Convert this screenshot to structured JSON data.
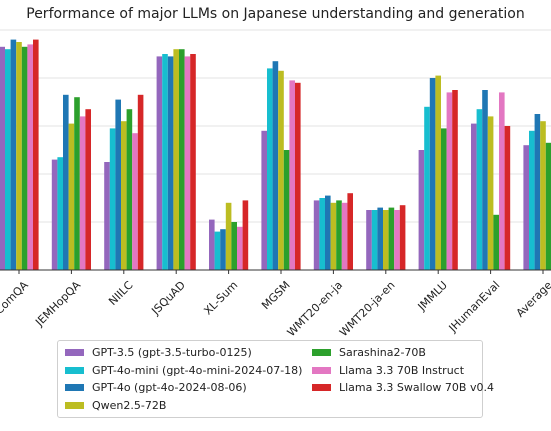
{
  "chart_data": {
    "type": "bar",
    "title": "Performance of major LLMs on Japanese understanding and generation",
    "xlabel": "",
    "ylabel": "",
    "ylim": [
      0,
      1.0
    ],
    "grid": "horizontal",
    "legend_position": "bottom",
    "categories": [
      "JComQA",
      "JEMHopQA",
      "NIILC",
      "JSQuAD",
      "XL-Sum",
      "MGSM",
      "WMT20-en-ja",
      "WMT20-ja-en",
      "JMMLU",
      "JHumanEval",
      "Average"
    ],
    "series": [
      {
        "name": "GPT-3.5 (gpt-3.5-turbo-0125)",
        "color": "#9467bd",
        "values": [
          0.93,
          0.46,
          0.45,
          0.89,
          0.21,
          0.58,
          0.29,
          0.25,
          0.5,
          0.61,
          0.52
        ]
      },
      {
        "name": "GPT-4o-mini (gpt-4o-mini-2024-07-18)",
        "color": "#17becf",
        "values": [
          0.92,
          0.47,
          0.59,
          0.9,
          0.16,
          0.84,
          0.3,
          0.25,
          0.68,
          0.67,
          0.58
        ]
      },
      {
        "name": "GPT-4o (gpt-4o-2024-08-06)",
        "color": "#1f77b4",
        "values": [
          0.96,
          0.73,
          0.71,
          0.89,
          0.17,
          0.87,
          0.31,
          0.26,
          0.8,
          0.75,
          0.65
        ]
      },
      {
        "name": "Qwen2.5-72B",
        "color": "#bcbd22",
        "values": [
          0.95,
          0.61,
          0.62,
          0.92,
          0.28,
          0.83,
          0.28,
          0.25,
          0.81,
          0.64,
          0.62
        ]
      },
      {
        "name": "Sarashina2-70B",
        "color": "#2ca02c",
        "values": [
          0.93,
          0.72,
          0.67,
          0.92,
          0.2,
          0.5,
          0.29,
          0.26,
          0.59,
          0.23,
          0.53
        ]
      },
      {
        "name": "Llama 3.3 70B Instruct",
        "color": "#e377c2",
        "values": [
          0.94,
          0.64,
          0.57,
          0.89,
          0.18,
          0.79,
          0.28,
          0.25,
          0.74,
          0.74,
          0.6
        ]
      },
      {
        "name": "Llama 3.3 Swallow 70B v0.4",
        "color": "#d62728",
        "values": [
          0.96,
          0.67,
          0.73,
          0.9,
          0.29,
          0.78,
          0.32,
          0.27,
          0.75,
          0.6,
          0.63
        ]
      }
    ]
  }
}
